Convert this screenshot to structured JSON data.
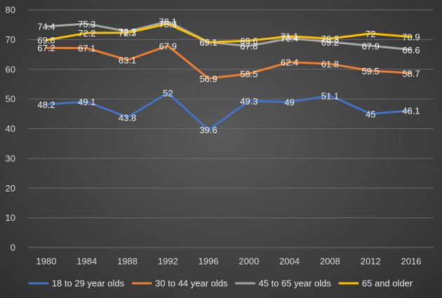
{
  "chart_data": {
    "type": "line",
    "title": "",
    "xlabel": "",
    "ylabel": "",
    "ylim": [
      0,
      80
    ],
    "yticks": [
      0,
      10,
      20,
      30,
      40,
      50,
      60,
      70,
      80
    ],
    "grid": true,
    "legend_position": "bottom",
    "categories": [
      "1980",
      "1984",
      "1988",
      "1992",
      "1996",
      "2000",
      "2004",
      "2008",
      "2012",
      "2016"
    ],
    "series": [
      {
        "name": "18 to 29 year olds",
        "color": "#4472c4",
        "values": [
          48.2,
          49.1,
          43.8,
          52,
          39.6,
          49.3,
          49,
          51.1,
          45,
          46.1
        ]
      },
      {
        "name": "30 to 44 year olds",
        "color": "#ed7d31",
        "values": [
          67.2,
          67.1,
          63.1,
          67.9,
          56.9,
          58.5,
          62.4,
          61.8,
          59.5,
          58.7
        ]
      },
      {
        "name": "45 to 65 year olds",
        "color": "#a5a5a5",
        "values": [
          74.4,
          75.3,
          72.7,
          76.1,
          69.1,
          67.8,
          70.4,
          69.2,
          67.9,
          66.6
        ]
      },
      {
        "name": "65 and older",
        "color": "#ffc000",
        "values": [
          69.8,
          72.2,
          72.3,
          75.3,
          69.1,
          69.6,
          71.1,
          70.3,
          72,
          70.9
        ]
      }
    ]
  }
}
